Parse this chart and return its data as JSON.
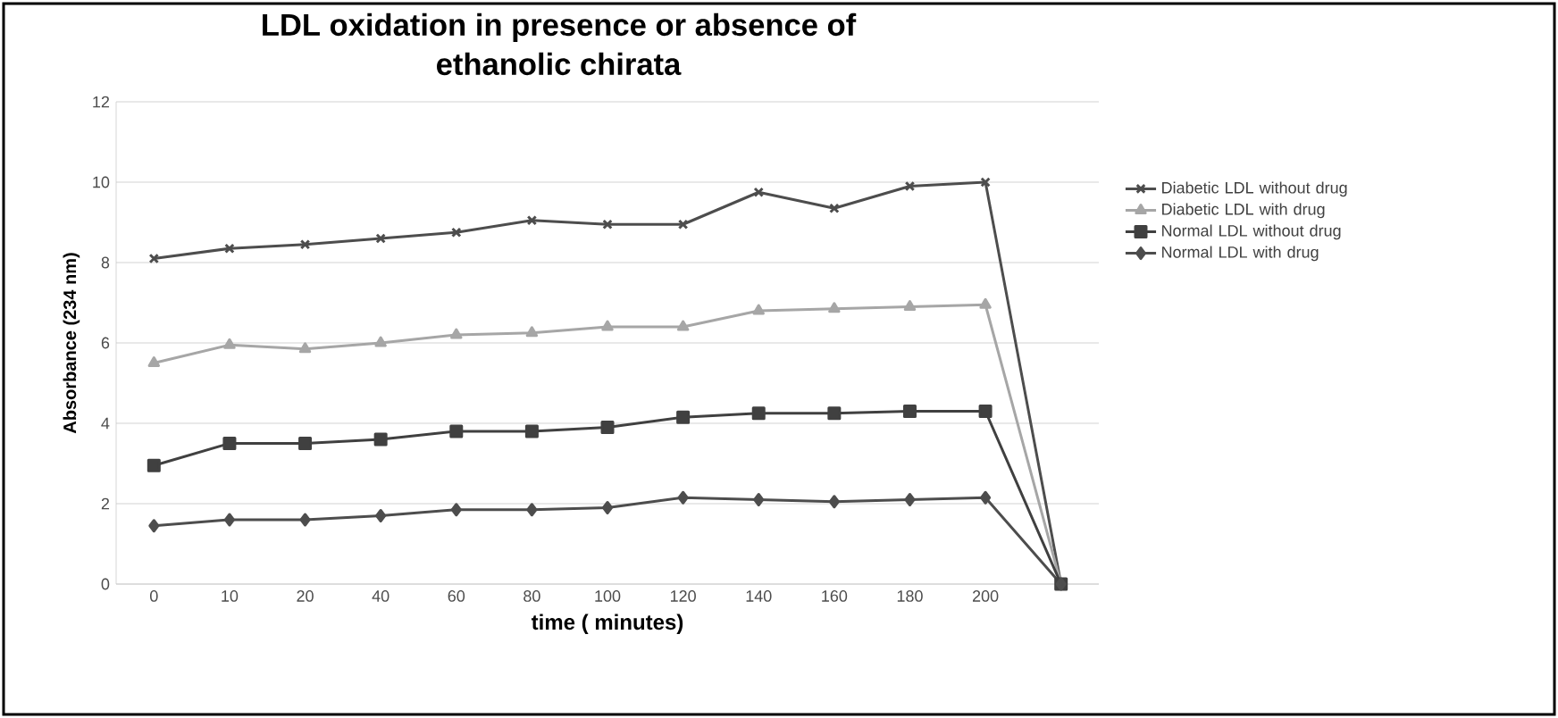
{
  "chart_data": {
    "type": "line",
    "title": "LDL oxidation in presence or absence of ethanolic chirata",
    "xlabel": "time ( minutes)",
    "ylabel": "Absorbance (234 nm)",
    "categories": [
      "0",
      "10",
      "20",
      "40",
      "60",
      "80",
      "100",
      "120",
      "140",
      "160",
      "180",
      "200",
      null
    ],
    "ylim": [
      0,
      12
    ],
    "yticks": [
      0,
      2,
      4,
      6,
      8,
      10,
      12
    ],
    "grid": "y",
    "legend": "right",
    "series": [
      {
        "name": "Diabetic LDL without drug",
        "color": "#4d4d4d",
        "marker": "cross",
        "values": [
          8.1,
          8.35,
          8.45,
          8.6,
          8.75,
          9.05,
          8.95,
          8.95,
          9.75,
          9.35,
          9.9,
          10.0,
          0
        ]
      },
      {
        "name": "Diabetic LDL with drug",
        "color": "#a6a6a6",
        "marker": "triangle",
        "values": [
          5.5,
          5.95,
          5.85,
          6.0,
          6.2,
          6.25,
          6.4,
          6.4,
          6.8,
          6.85,
          6.9,
          6.95,
          0
        ]
      },
      {
        "name": "Normal LDL without drug",
        "color": "#404040",
        "marker": "square",
        "values": [
          2.95,
          3.5,
          3.5,
          3.6,
          3.8,
          3.8,
          3.9,
          4.15,
          4.25,
          4.25,
          4.3,
          4.3,
          0
        ]
      },
      {
        "name": "Normal LDL with drug",
        "color": "#4d4d4d",
        "marker": "diamond",
        "values": [
          1.45,
          1.6,
          1.6,
          1.7,
          1.85,
          1.85,
          1.9,
          2.15,
          2.1,
          2.05,
          2.1,
          2.15,
          0
        ]
      }
    ]
  }
}
